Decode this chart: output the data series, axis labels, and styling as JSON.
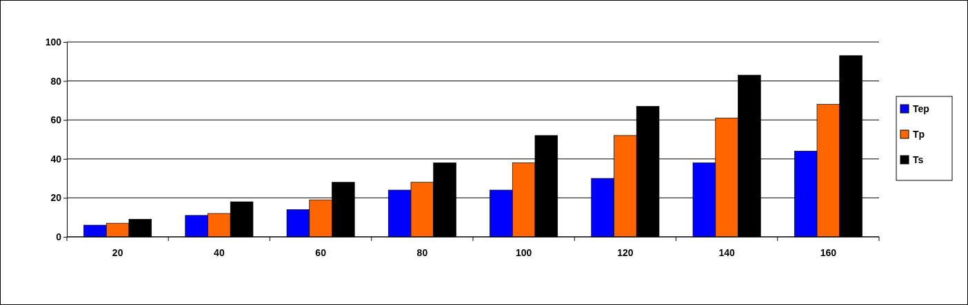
{
  "chart_data": {
    "type": "bar",
    "categories": [
      "20",
      "40",
      "60",
      "80",
      "100",
      "120",
      "140",
      "160"
    ],
    "series": [
      {
        "name": "Tep",
        "color": "#0000ff",
        "values": [
          6,
          11,
          14,
          24,
          24,
          30,
          38,
          44
        ]
      },
      {
        "name": "Tp",
        "color": "#ff6600",
        "values": [
          7,
          12,
          19,
          28,
          38,
          52,
          61,
          68
        ]
      },
      {
        "name": "Ts",
        "color": "#000000",
        "values": [
          9,
          18,
          28,
          38,
          52,
          67,
          83,
          93
        ]
      }
    ],
    "ylim": [
      0,
      100
    ],
    "yticks": [
      0,
      20,
      40,
      60,
      80,
      100
    ],
    "grid": "y",
    "legend": "right"
  }
}
